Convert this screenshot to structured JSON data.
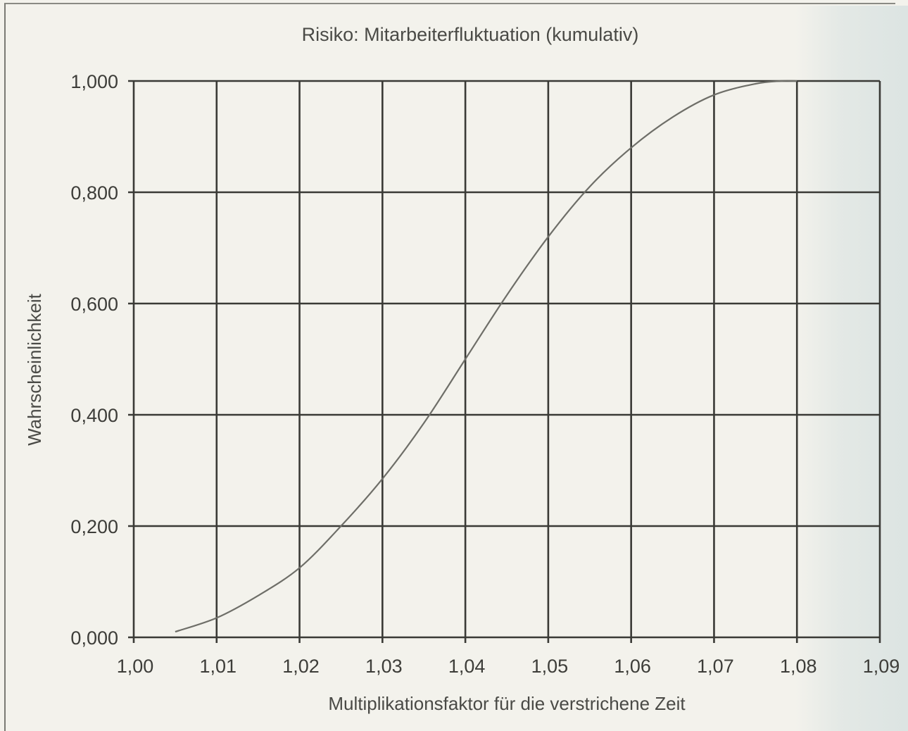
{
  "chart_data": {
    "type": "line",
    "title": "Risiko: Mitarbeiterfluktuation (kumulativ)",
    "xlabel": "Multiplikationsfaktor für die verstrichene Zeit",
    "ylabel": "Wahrscheinlichkeit",
    "xlim": [
      1.0,
      1.09
    ],
    "ylim": [
      0.0,
      1.0
    ],
    "x_ticks": [
      1.0,
      1.01,
      1.02,
      1.03,
      1.04,
      1.05,
      1.06,
      1.07,
      1.08,
      1.09
    ],
    "x_tick_labels": [
      "1,00",
      "1,01",
      "1,02",
      "1,03",
      "1,04",
      "1,05",
      "1,06",
      "1,07",
      "1,08",
      "1,09"
    ],
    "y_ticks": [
      0.0,
      0.2,
      0.4,
      0.6,
      0.8,
      1.0
    ],
    "y_tick_labels": [
      "0,000",
      "0,200",
      "0,400",
      "0,600",
      "0,800",
      "1,000"
    ],
    "grid": true,
    "legend": "none",
    "colors": {
      "grid": "#3a3a36",
      "line": "#6e6e68",
      "text": "#4a4a46"
    },
    "series": [
      {
        "x": [
          1.005,
          1.01,
          1.015,
          1.02,
          1.025,
          1.03,
          1.035,
          1.04,
          1.045,
          1.05,
          1.055,
          1.06,
          1.065,
          1.07,
          1.075,
          1.078,
          1.08
        ],
        "values": [
          0.01,
          0.035,
          0.075,
          0.125,
          0.2,
          0.285,
          0.385,
          0.5,
          0.615,
          0.72,
          0.81,
          0.88,
          0.935,
          0.975,
          0.995,
          1.0,
          1.0
        ]
      }
    ]
  }
}
